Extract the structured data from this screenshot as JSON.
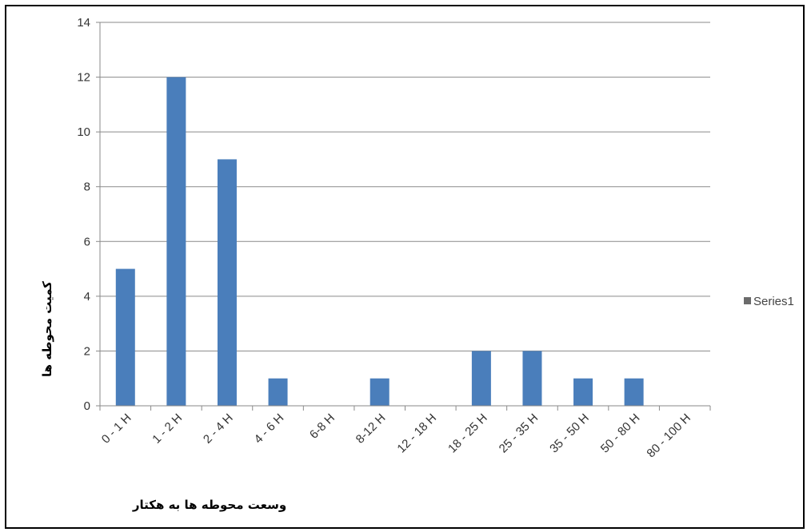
{
  "chart_data": {
    "type": "bar",
    "categories": [
      "0 - 1 H",
      "1 - 2 H",
      "2 - 4 H",
      "4 - 6 H",
      "6-8 H",
      "8-12 H",
      "12 - 18 H",
      "18 - 25 H",
      "25 - 35 H",
      "35 - 50 H",
      "50 - 80 H",
      "80 - 100 H"
    ],
    "series": [
      {
        "name": "Series1",
        "values": [
          5,
          12,
          9,
          1,
          0,
          1,
          0,
          2,
          2,
          1,
          1,
          0
        ]
      }
    ],
    "title": "",
    "xlabel": "وسعت محوطه ها به هکتار",
    "ylabel": "کمیت محوطه ها",
    "ylim": [
      0,
      14
    ],
    "yticks": [
      0,
      2,
      4,
      6,
      8,
      10,
      12,
      14
    ],
    "grid": true,
    "legend": "right",
    "colors": {
      "bar": "#4a7ebb",
      "grid": "#8a8a8a",
      "axis": "#8a8a8a"
    }
  }
}
